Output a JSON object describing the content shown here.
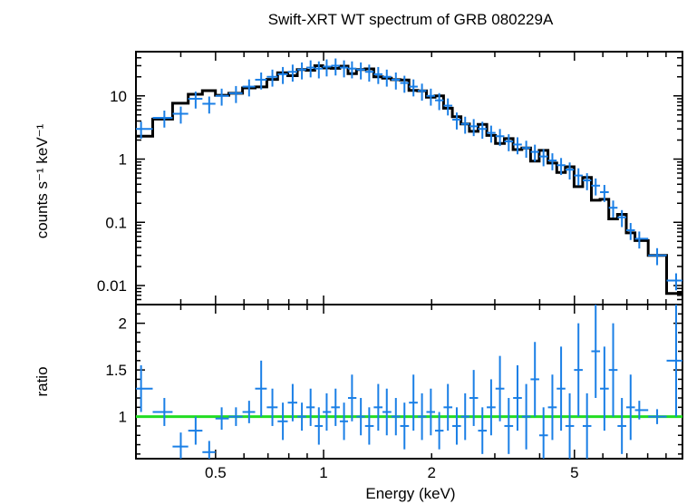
{
  "chart_data": [
    {
      "type": "scatter",
      "panel": "spectrum",
      "title": "Swift-XRT WT spectrum of GRB 080229A",
      "xlabel": "",
      "ylabel": "counts s⁻¹ keV⁻¹",
      "xscale": "log",
      "yscale": "log",
      "xlim": [
        0.3,
        10
      ],
      "ylim": [
        0.005,
        50
      ],
      "ytick_labels": [
        "10",
        "1",
        "0.1",
        "0.01"
      ],
      "ytick_values": [
        10,
        1,
        0.1,
        0.01
      ],
      "grid": false,
      "colors": {
        "data": "#1a7fe6",
        "model": "#000000"
      },
      "series": [
        {
          "x": [
            0.31,
            0.36,
            0.4,
            0.44,
            0.48,
            0.52,
            0.57,
            0.62,
            0.67,
            0.72,
            0.77,
            0.82,
            0.87,
            0.92,
            0.97,
            1.02,
            1.08,
            1.14,
            1.2,
            1.27,
            1.34,
            1.42,
            1.5,
            1.59,
            1.68,
            1.78,
            1.88,
            1.99,
            2.1,
            2.22,
            2.35,
            2.48,
            2.62,
            2.77,
            2.93,
            3.1,
            3.28,
            3.47,
            3.67,
            3.88,
            4.1,
            4.34,
            4.59,
            4.85,
            5.13,
            5.42,
            5.73,
            6.06,
            6.41,
            6.78,
            7.17,
            7.58,
            8.5,
            9.6
          ],
          "y": [
            3.0,
            4.5,
            5.2,
            9.0,
            7.5,
            10.0,
            11.0,
            14.0,
            18.0,
            20.0,
            22.0,
            24.0,
            26.0,
            28.0,
            27.0,
            29.0,
            30.0,
            28.0,
            27.0,
            26.0,
            24.0,
            22.0,
            20.0,
            18.0,
            16.0,
            14.0,
            12.0,
            10.0,
            8.5,
            7.0,
            4.2,
            3.6,
            3.3,
            3.0,
            2.6,
            2.3,
            1.9,
            1.7,
            1.5,
            1.3,
            1.1,
            0.95,
            0.8,
            0.68,
            0.55,
            0.46,
            0.38,
            0.3,
            0.17,
            0.12,
            0.075,
            0.055,
            0.03,
            0.012
          ],
          "yerr_frac": 0.3
        }
      ]
    },
    {
      "type": "scatter",
      "panel": "ratio",
      "title": "",
      "xlabel": "Energy (keV)",
      "ylabel": "ratio",
      "xscale": "log",
      "xlim": [
        0.3,
        10
      ],
      "ylim": [
        0.55,
        2.2
      ],
      "xtick_labels": [
        "0.5",
        "1",
        "2",
        "5"
      ],
      "xtick_values": [
        0.5,
        1,
        2,
        5
      ],
      "ytick_labels": [
        "1",
        "1.5",
        "2"
      ],
      "ytick_values": [
        1,
        1.5,
        2
      ],
      "reference_line": 1,
      "colors": {
        "data": "#1a7fe6",
        "reference": "#22dd22"
      },
      "series": [
        {
          "x": [
            0.31,
            0.36,
            0.4,
            0.44,
            0.48,
            0.52,
            0.57,
            0.62,
            0.67,
            0.72,
            0.77,
            0.82,
            0.87,
            0.92,
            0.97,
            1.02,
            1.08,
            1.14,
            1.2,
            1.27,
            1.34,
            1.42,
            1.5,
            1.59,
            1.68,
            1.78,
            1.88,
            1.99,
            2.1,
            2.22,
            2.35,
            2.48,
            2.62,
            2.77,
            2.93,
            3.1,
            3.28,
            3.47,
            3.67,
            3.88,
            4.1,
            4.34,
            4.59,
            4.85,
            5.13,
            5.42,
            5.73,
            6.06,
            6.41,
            6.78,
            7.17,
            7.58,
            8.5,
            9.6
          ],
          "y": [
            1.3,
            1.05,
            0.68,
            0.85,
            0.62,
            0.98,
            1.0,
            1.05,
            1.3,
            1.1,
            0.95,
            1.15,
            1.0,
            1.1,
            0.9,
            1.05,
            1.1,
            0.95,
            1.2,
            1.0,
            0.9,
            1.1,
            1.05,
            1.0,
            0.9,
            1.15,
            1.0,
            1.05,
            0.85,
            1.1,
            0.9,
            1.0,
            1.2,
            0.85,
            1.1,
            1.3,
            0.9,
            1.2,
            1.0,
            1.4,
            0.8,
            1.1,
            1.3,
            0.9,
            1.5,
            0.9,
            1.7,
            1.3,
            1.5,
            0.9,
            1.1,
            1.07,
            1.0,
            1.6
          ],
          "yerr": [
            0.25,
            0.15,
            0.15,
            0.15,
            0.12,
            0.12,
            0.1,
            0.12,
            0.3,
            0.2,
            0.2,
            0.2,
            0.15,
            0.2,
            0.2,
            0.2,
            0.2,
            0.2,
            0.25,
            0.2,
            0.2,
            0.25,
            0.25,
            0.2,
            0.25,
            0.3,
            0.25,
            0.25,
            0.2,
            0.25,
            0.2,
            0.25,
            0.3,
            0.25,
            0.3,
            0.35,
            0.3,
            0.35,
            0.35,
            0.4,
            0.3,
            0.35,
            0.45,
            0.35,
            0.5,
            0.35,
            0.5,
            0.45,
            0.5,
            0.3,
            0.35,
            0.1,
            0.08,
            0.6
          ]
        }
      ]
    }
  ]
}
